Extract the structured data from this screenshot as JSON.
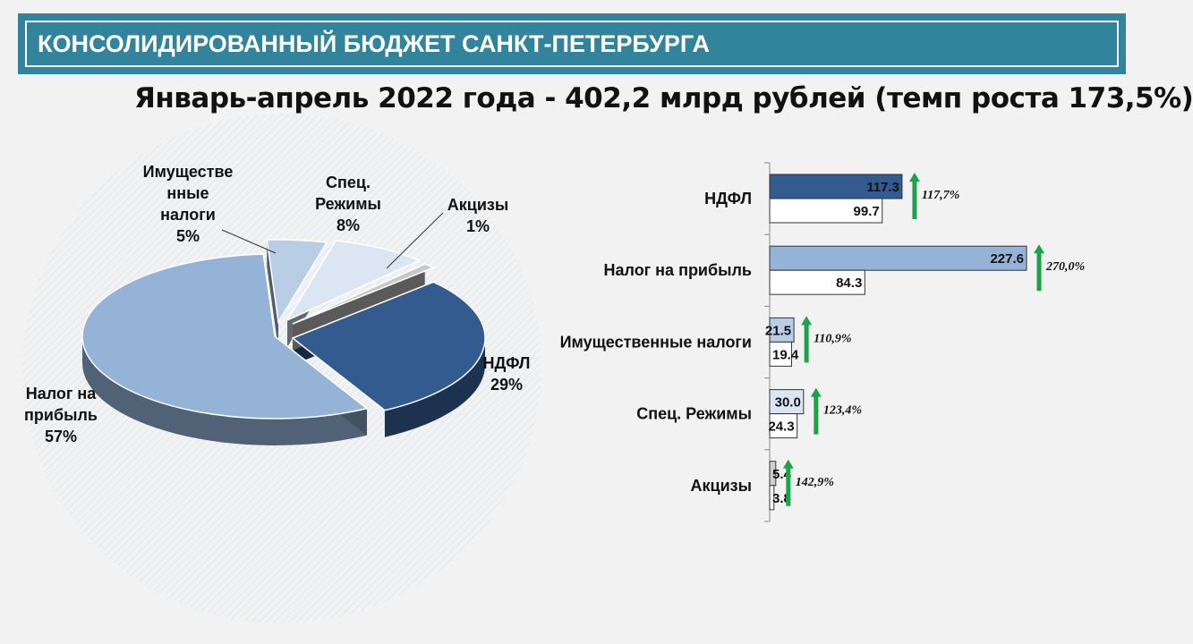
{
  "header": {
    "title": "КОНСОЛИДИРОВАННЫЙ БЮДЖЕТ САНКТ-ПЕТЕРБУРГА",
    "subtitle": "Январь-апрель 2022 года - 402,2 млрд рублей (темп роста 173,5%)"
  },
  "chart_data": [
    {
      "type": "pie",
      "title": "",
      "slices": [
        {
          "label_lines": [
            "НДФЛ",
            "29%"
          ],
          "value": 29,
          "color": "#335b8f"
        },
        {
          "label_lines": [
            "Налог на",
            "прибыль",
            "57%"
          ],
          "value": 57,
          "color": "#95b3d7"
        },
        {
          "label_lines": [
            "Имуществе",
            "нные",
            "налоги",
            "5%"
          ],
          "value": 5,
          "color": "#b9cde5"
        },
        {
          "label_lines": [
            "Спец.",
            "Режимы",
            "8%"
          ],
          "value": 8,
          "color": "#dce6f2"
        },
        {
          "label_lines": [
            "Акцизы",
            "1%"
          ],
          "value": 1,
          "color": "#c8c8c8"
        }
      ]
    },
    {
      "type": "bar",
      "orientation": "horizontal",
      "title": "",
      "categories": [
        "НДФЛ",
        "Налог на прибыль",
        "Имущественные налоги",
        "Спец. Режимы",
        "Акцизы"
      ],
      "series": [
        {
          "values": [
            117.3,
            227.6,
            21.5,
            30.0,
            5.4
          ],
          "labels": [
            "117.3",
            "227.6",
            "21.5",
            "30.0",
            "5.4"
          ],
          "colors": [
            "#335b8f",
            "#95b3d7",
            "#b9cde5",
            "#dce6f2",
            "#d0d0d0"
          ]
        },
        {
          "values": [
            99.7,
            84.3,
            19.4,
            24.3,
            3.8
          ],
          "labels": [
            "99.7",
            "84.3",
            "19.4",
            "24.3",
            "3.8"
          ],
          "colors": [
            "#ffffff",
            "#ffffff",
            "#ffffff",
            "#ffffff",
            "#ffffff"
          ]
        }
      ],
      "growth": [
        "117,7%",
        "270,0%",
        "110,9%",
        "123,4%",
        "142,9%"
      ],
      "arrow_color": "#1aa34a",
      "xlim": [
        0,
        227.6
      ]
    }
  ]
}
